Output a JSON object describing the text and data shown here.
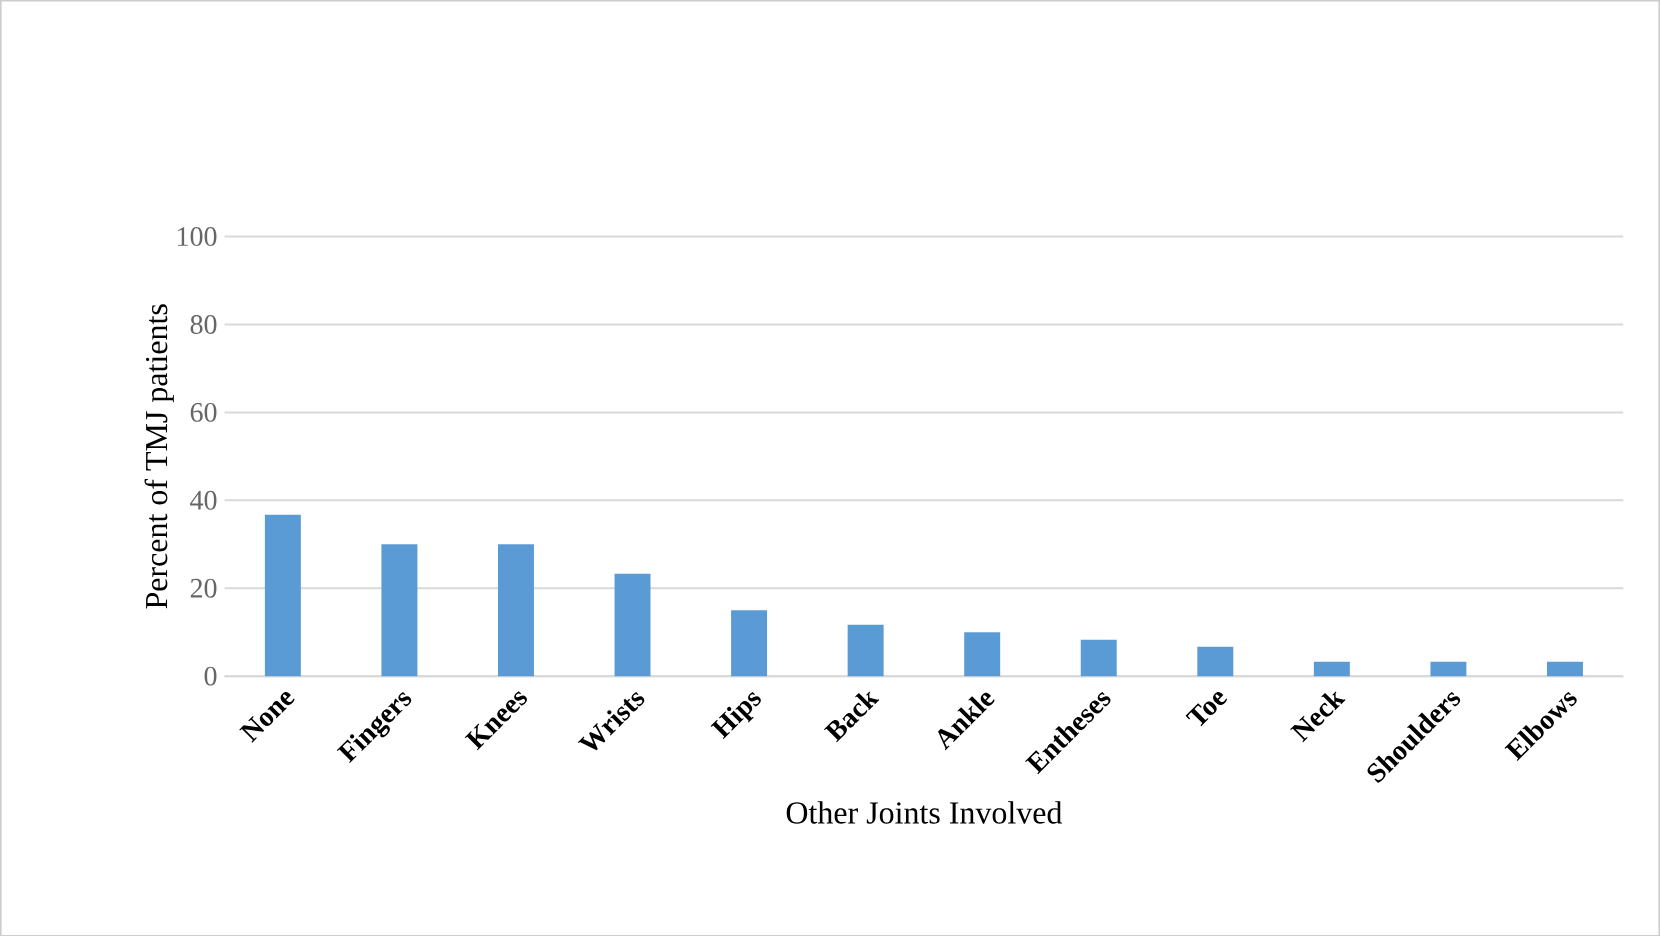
{
  "chart_data": {
    "type": "bar",
    "xlabel": "Other Joints Involved",
    "ylabel": "Percent of TMJ patients",
    "categories": [
      "None",
      "Fingers",
      "Knees",
      "Wrists",
      "Hips",
      "Back",
      "Ankle",
      "Entheses",
      "Toe",
      "Neck",
      "Shoulders",
      "Elbows"
    ],
    "values": [
      36.7,
      30,
      30,
      23.3,
      15,
      11.7,
      10,
      8.3,
      6.7,
      3.3,
      3.3,
      3.3
    ],
    "color": "#5b9bd5",
    "ylim": [
      0,
      100
    ],
    "yticks": [
      0,
      20,
      40,
      60,
      80,
      100
    ],
    "grid": "y"
  }
}
